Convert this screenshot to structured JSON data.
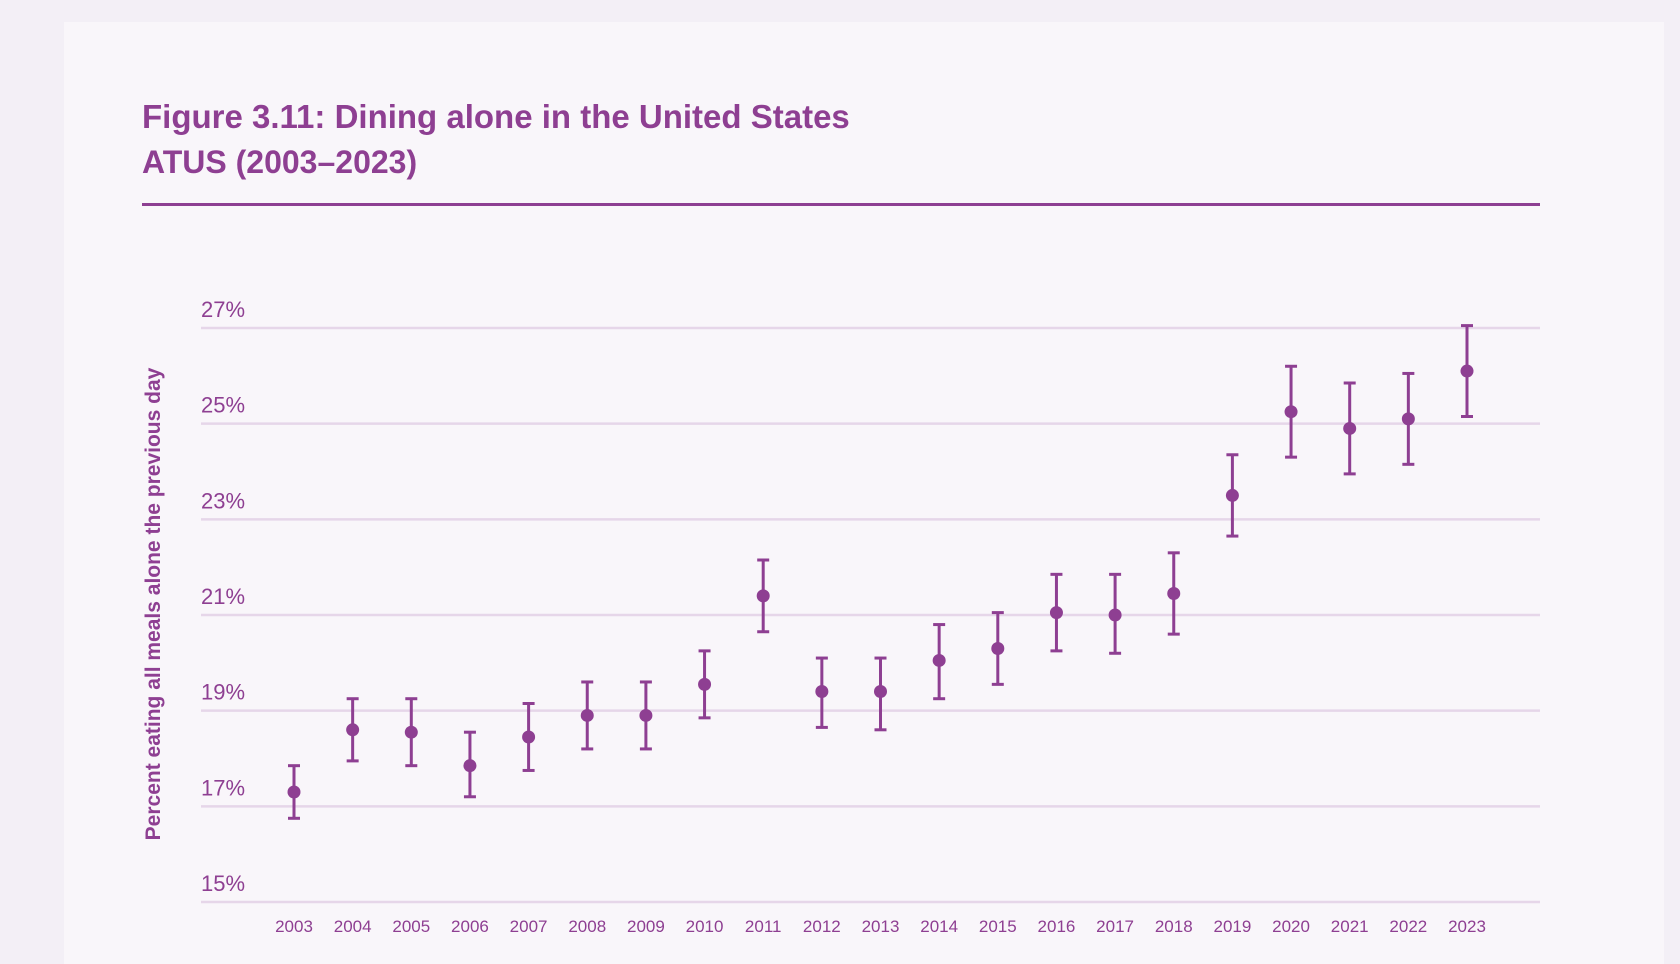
{
  "header": {
    "title": "Figure 3.11: Dining alone in the United States",
    "subtitle": "ATUS (2003–2023)"
  },
  "colors": {
    "accent": "#8e3f92",
    "grid": "#e6d6e9",
    "background": "#f9f6fa"
  },
  "chart_data": {
    "type": "scatter",
    "title": "Figure 3.11: Dining alone in the United States",
    "subtitle": "ATUS (2003–2023)",
    "xlabel": "",
    "ylabel": "Percent eating all meals alone the previous day",
    "ylim": [
      15,
      27
    ],
    "yticks": [
      "15%",
      "17%",
      "19%",
      "21%",
      "23%",
      "25%",
      "27%"
    ],
    "ytick_values": [
      15,
      17,
      19,
      21,
      23,
      25,
      27
    ],
    "grid": true,
    "categories": [
      "2003",
      "2004",
      "2005",
      "2006",
      "2007",
      "2008",
      "2009",
      "2010",
      "2011",
      "2012",
      "2013",
      "2014",
      "2015",
      "2016",
      "2017",
      "2018",
      "2019",
      "2020",
      "2021",
      "2022",
      "2023"
    ],
    "values": [
      17.3,
      18.6,
      18.55,
      17.85,
      18.45,
      18.9,
      18.9,
      19.55,
      21.4,
      19.4,
      19.4,
      20.05,
      20.3,
      21.05,
      21.0,
      21.45,
      23.5,
      25.25,
      24.9,
      25.1,
      26.1
    ],
    "error_low": [
      16.75,
      17.95,
      17.85,
      17.2,
      17.75,
      18.2,
      18.2,
      18.85,
      20.65,
      18.65,
      18.6,
      19.25,
      19.55,
      20.25,
      20.2,
      20.6,
      22.65,
      24.3,
      23.95,
      24.15,
      25.15
    ],
    "error_high": [
      17.85,
      19.25,
      19.25,
      18.55,
      19.15,
      19.6,
      19.6,
      20.25,
      22.15,
      20.1,
      20.1,
      20.8,
      21.05,
      21.85,
      21.85,
      22.3,
      24.35,
      26.2,
      25.85,
      26.05,
      27.05
    ]
  }
}
